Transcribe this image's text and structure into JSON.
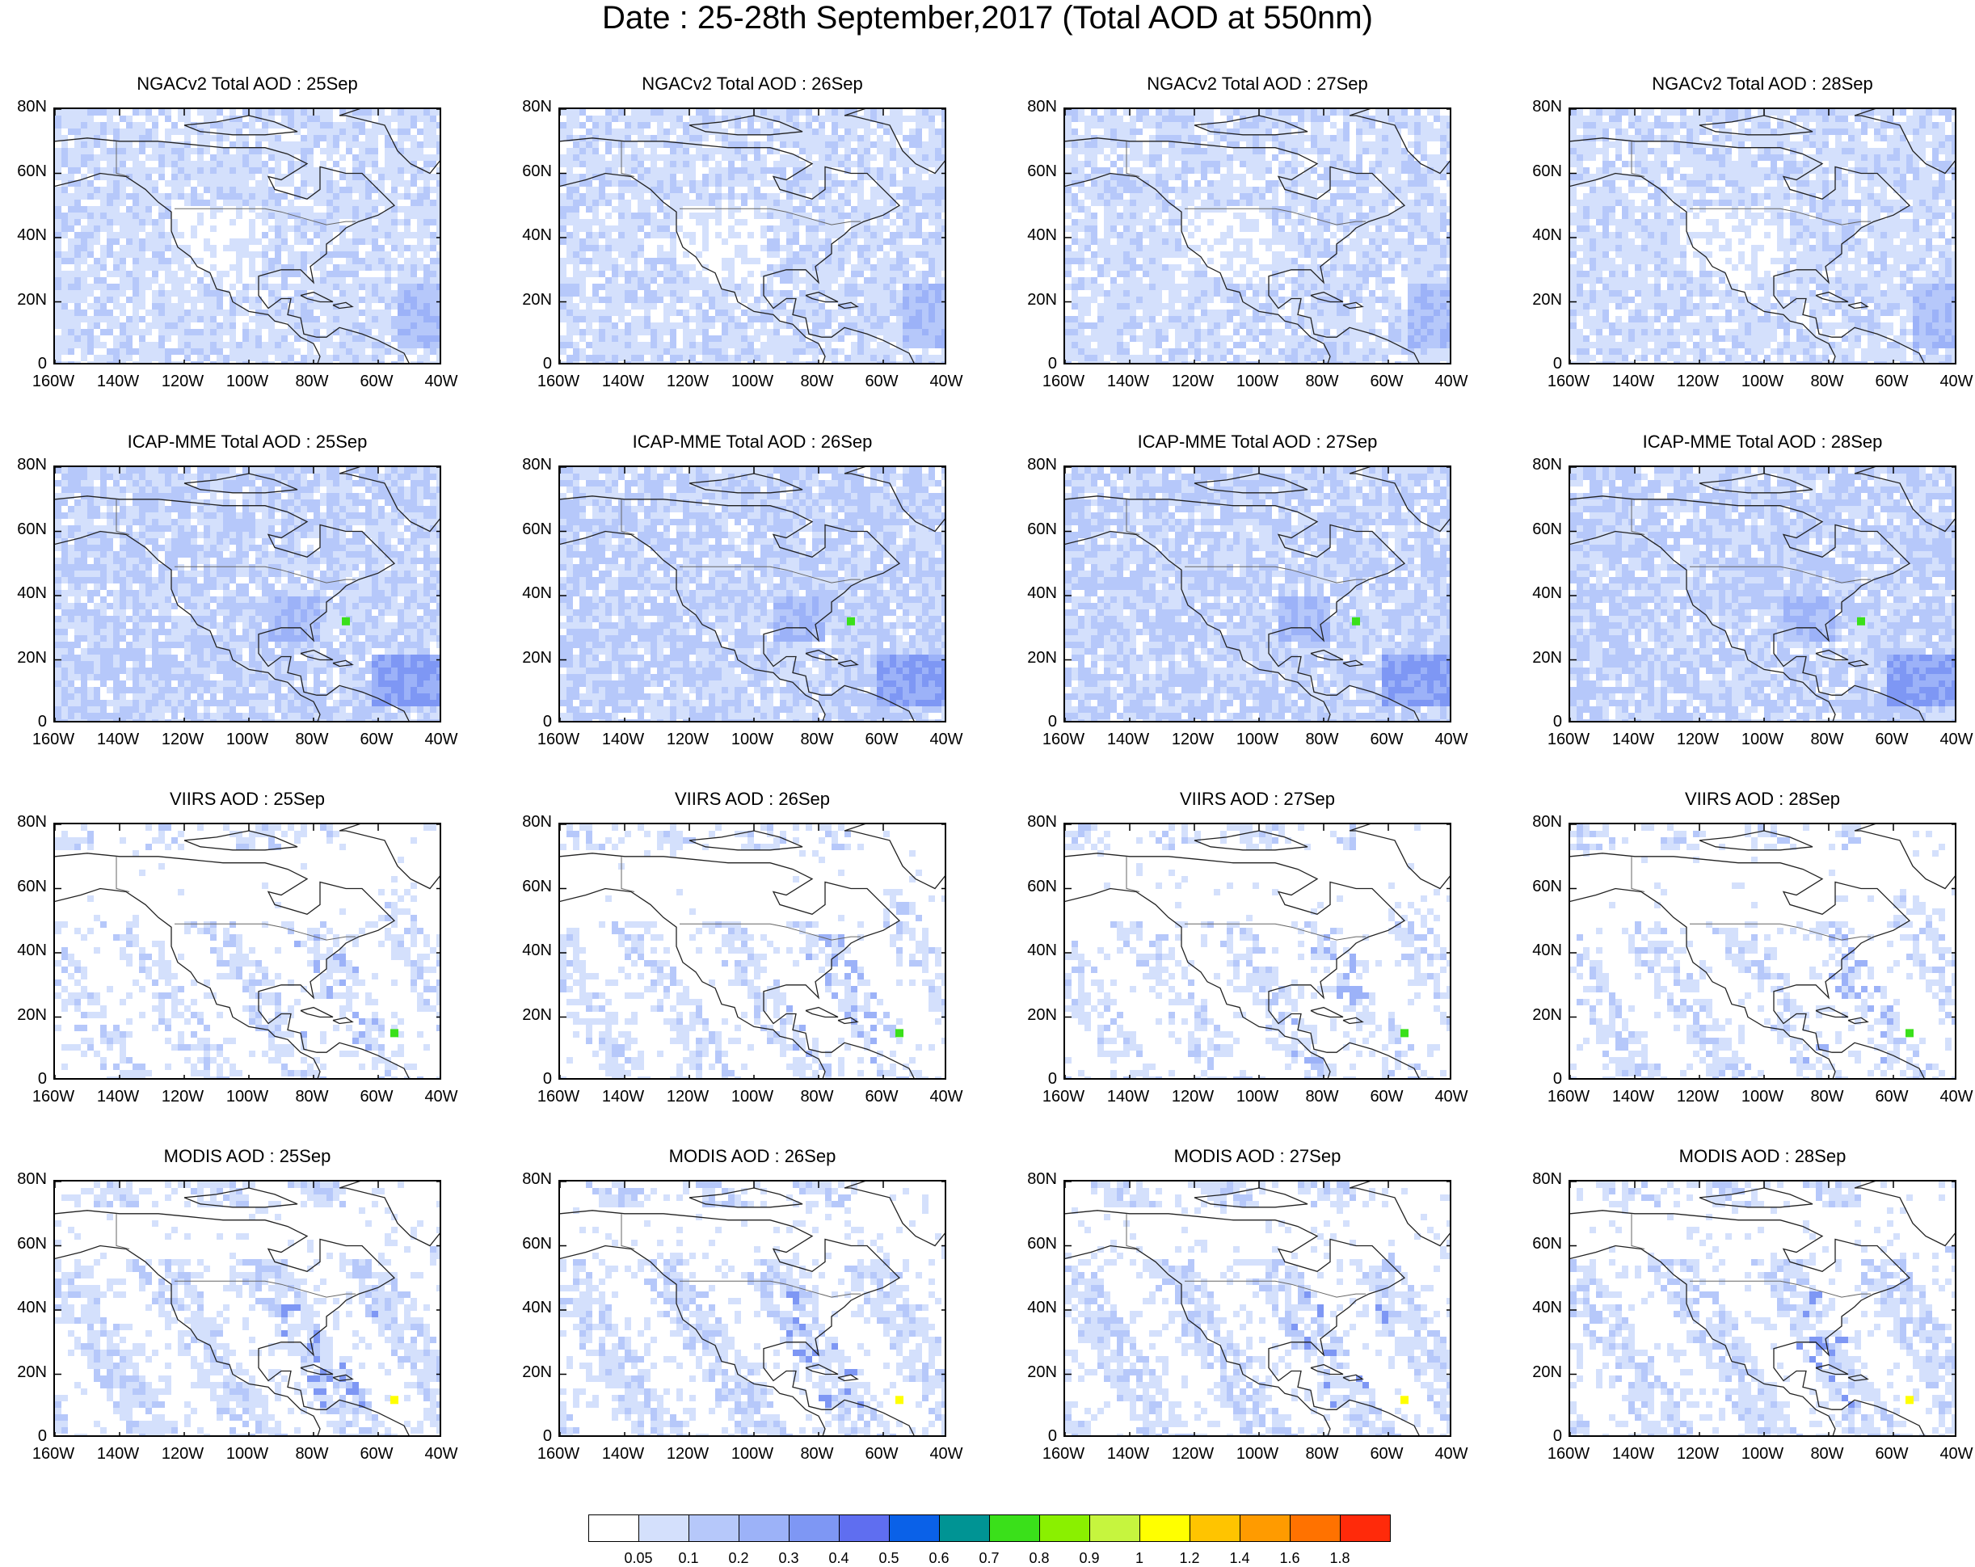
{
  "title": "Date : 25-28th September,2017 (Total AOD at 550nm)",
  "axes": {
    "lon_ticks": [
      "160W",
      "140W",
      "120W",
      "100W",
      "80W",
      "60W",
      "40W"
    ],
    "lat_ticks": [
      "80N",
      "60N",
      "40N",
      "20N",
      "0"
    ],
    "lon_range": [
      -160,
      -40
    ],
    "lat_range": [
      0,
      80
    ]
  },
  "panels": [
    {
      "title": "NGACv2 Total AOD : 25Sep",
      "source": "NGACv2",
      "day": 25
    },
    {
      "title": "NGACv2 Total AOD : 26Sep",
      "source": "NGACv2",
      "day": 26
    },
    {
      "title": "NGACv2 Total AOD : 27Sep",
      "source": "NGACv2",
      "day": 27
    },
    {
      "title": "NGACv2 Total AOD : 28Sep",
      "source": "NGACv2",
      "day": 28
    },
    {
      "title": "ICAP-MME Total AOD : 25Sep",
      "source": "ICAP",
      "day": 25
    },
    {
      "title": "ICAP-MME Total AOD : 26Sep",
      "source": "ICAP",
      "day": 26
    },
    {
      "title": "ICAP-MME Total AOD : 27Sep",
      "source": "ICAP",
      "day": 27
    },
    {
      "title": "ICAP-MME Total AOD : 28Sep",
      "source": "ICAP",
      "day": 28
    },
    {
      "title": "VIIRS AOD : 25Sep",
      "source": "VIIRS",
      "day": 25
    },
    {
      "title": "VIIRS AOD : 26Sep",
      "source": "VIIRS",
      "day": 26
    },
    {
      "title": "VIIRS AOD : 27Sep",
      "source": "VIIRS",
      "day": 27
    },
    {
      "title": "VIIRS AOD : 28Sep",
      "source": "VIIRS",
      "day": 28
    },
    {
      "title": "MODIS AOD : 25Sep",
      "source": "MODIS",
      "day": 25
    },
    {
      "title": "MODIS AOD : 26Sep",
      "source": "MODIS",
      "day": 26
    },
    {
      "title": "MODIS AOD : 27Sep",
      "source": "MODIS",
      "day": 27
    },
    {
      "title": "MODIS AOD : 28Sep",
      "source": "MODIS",
      "day": 28
    }
  ],
  "colorbar": {
    "labels": [
      "0.05",
      "0.1",
      "0.2",
      "0.3",
      "0.4",
      "0.5",
      "0.6",
      "0.7",
      "0.8",
      "0.9",
      "1",
      "1.2",
      "1.4",
      "1.6",
      "1.8"
    ],
    "colors": [
      "#ffffff",
      "#d4e0fc",
      "#b6c8fa",
      "#9cb2f8",
      "#7e97f4",
      "#5f6ef0",
      "#0a61e8",
      "#009494",
      "#3ae01a",
      "#8af000",
      "#c6f53e",
      "#ffff00",
      "#ffc400",
      "#ff9b00",
      "#ff7200",
      "#ff2a0a"
    ]
  },
  "land_color": "#d4e0fc"
}
